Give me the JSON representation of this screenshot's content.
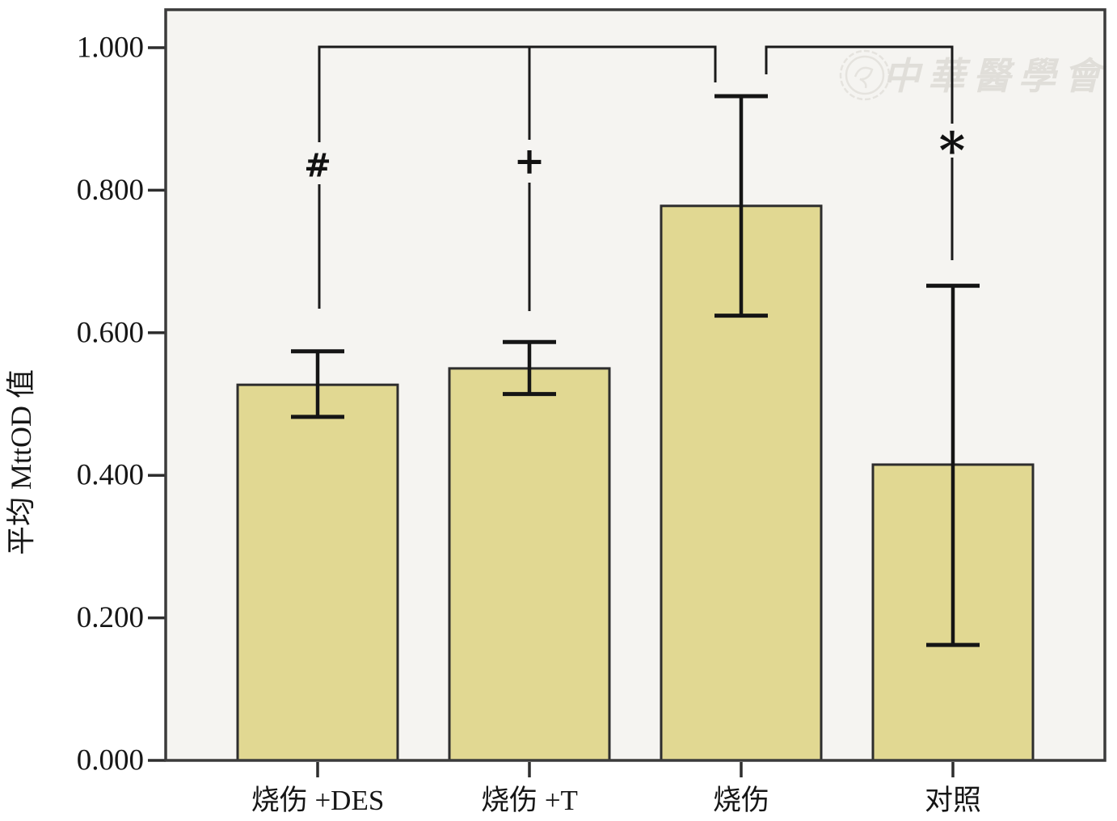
{
  "figure": {
    "watermark_text": "中華醫學會"
  },
  "chart_data": {
    "type": "bar",
    "title": "",
    "xlabel": "",
    "ylabel": "平均 MttOD 值",
    "categories": [
      "烧伤 +DES",
      "烧伤 +T",
      "烧伤",
      "对照"
    ],
    "values": [
      0.527,
      0.55,
      0.778,
      0.415
    ],
    "error_upper": [
      0.574,
      0.587,
      0.932,
      0.666
    ],
    "error_lower": [
      0.482,
      0.514,
      0.624,
      0.162
    ],
    "ylim": [
      0,
      1.053
    ],
    "yticks": [
      0,
      0.2,
      0.4,
      0.6,
      0.8,
      1.0
    ],
    "ytick_labels": [
      "0.000",
      "0.200",
      "0.400",
      "0.600",
      "0.800",
      "1.000"
    ],
    "grid": false,
    "legend": null,
    "bar_color": "#e1d892",
    "bar_edge_color": "#2d2d2d",
    "plot_background": "#f5f4f1",
    "significance": [
      {
        "marker": "#",
        "compares": [
          "烧伤 +DES",
          "烧伤"
        ]
      },
      {
        "marker": "+",
        "compares": [
          "烧伤 +T",
          "烧伤"
        ]
      },
      {
        "marker": "*",
        "compares": [
          "烧伤",
          "对照"
        ]
      }
    ]
  }
}
